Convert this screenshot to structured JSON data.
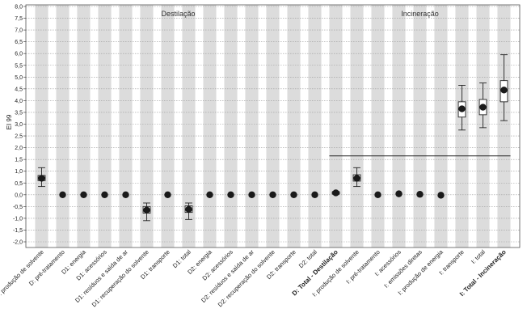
{
  "chart_data": {
    "type": "box",
    "ylabel": "EI 99",
    "ylim": [
      -2.0,
      8.0
    ],
    "ytick_step": 0.5,
    "grid": "horizontal-dotted",
    "groups": [
      {
        "label": "Destilação",
        "span": [
          0,
          13
        ]
      },
      {
        "label": "Incineração",
        "span": [
          14,
          22
        ]
      }
    ],
    "categories": [
      {
        "label": "D: produção de solvente",
        "bold": false,
        "mean": 0.7,
        "q1": 0.6,
        "q3": 0.82,
        "low": 0.35,
        "high": 1.15
      },
      {
        "label": "D: pré-tratamento",
        "bold": false,
        "mean": 0.0
      },
      {
        "label": "D1: energia",
        "bold": false,
        "mean": 0.0
      },
      {
        "label": "D1: acessórios",
        "bold": false,
        "mean": 0.0
      },
      {
        "label": "D1: resíduos e saída de ar",
        "bold": false,
        "mean": 0.0
      },
      {
        "label": "D1: recuperação do solvente",
        "bold": false,
        "mean": -0.65,
        "q1": -0.78,
        "q3": -0.5,
        "low": -1.1,
        "high": -0.35
      },
      {
        "label": "D1: transporte",
        "bold": false,
        "mean": 0.0
      },
      {
        "label": "D1: total",
        "bold": false,
        "mean": -0.62,
        "q1": -0.75,
        "q3": -0.47,
        "low": -1.05,
        "high": -0.35
      },
      {
        "label": "D2: energia",
        "bold": false,
        "mean": 0.0
      },
      {
        "label": "D2: acessórios",
        "bold": false,
        "mean": 0.0
      },
      {
        "label": "D2: resíduos e saída de ar",
        "bold": false,
        "mean": 0.0
      },
      {
        "label": "D2: recuperação do solvente",
        "bold": false,
        "mean": 0.0
      },
      {
        "label": "D2: transporte",
        "bold": false,
        "mean": 0.0
      },
      {
        "label": "D2: total",
        "bold": false,
        "mean": 0.0
      },
      {
        "label": "D: Total - Destilação",
        "bold": true,
        "mean": 0.08,
        "q1": 0.04,
        "q3": 0.12,
        "low": 0.02,
        "high": 0.14
      },
      {
        "label": "I: produção de solvente",
        "bold": false,
        "mean": 0.7,
        "q1": 0.58,
        "q3": 0.85,
        "low": 0.35,
        "high": 1.15
      },
      {
        "label": "I: pré-tratamento",
        "bold": false,
        "mean": 0.0
      },
      {
        "label": "I: acessórios",
        "bold": false,
        "mean": 0.04
      },
      {
        "label": "I: emissões diretas",
        "bold": false,
        "mean": 0.02
      },
      {
        "label": "I: produção de energia",
        "bold": false,
        "mean": -0.02
      },
      {
        "label": "I: transporte",
        "bold": false,
        "mean": 3.65,
        "q1": 3.3,
        "q3": 3.95,
        "low": 2.75,
        "high": 4.65
      },
      {
        "label": "I: total",
        "bold": false,
        "mean": 3.72,
        "q1": 3.4,
        "q3": 4.05,
        "low": 2.85,
        "high": 4.75
      },
      {
        "label": "I: Total - Incineração",
        "bold": true,
        "mean": 4.45,
        "q1": 3.95,
        "q3": 4.85,
        "low": 3.15,
        "high": 5.95
      }
    ],
    "comparison_line": {
      "value": 1.65,
      "from": 14,
      "to": 22
    }
  }
}
